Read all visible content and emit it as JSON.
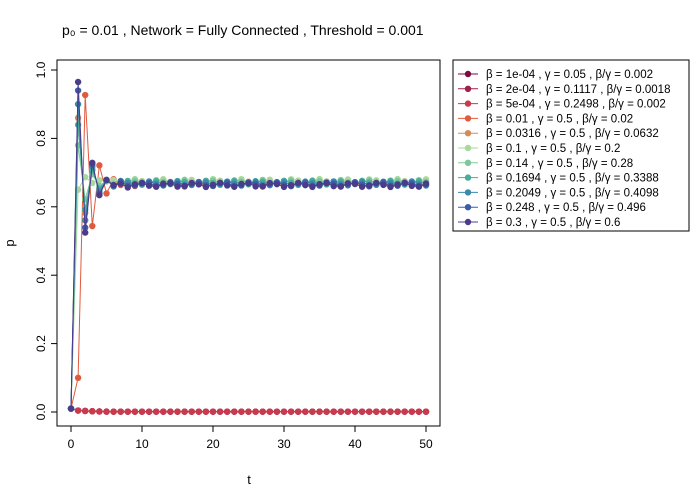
{
  "chart_data": {
    "type": "line",
    "title": "p₀ = 0.01 ,  Network = Fully Connected ,  Threshold = 0.001",
    "xlabel": "t",
    "ylabel": "p",
    "xlim": [
      0,
      50
    ],
    "ylim": [
      0,
      1
    ],
    "x_ticks": [
      "0",
      "10",
      "20",
      "30",
      "40",
      "50"
    ],
    "y_ticks": [
      "0.0",
      "0.2",
      "0.4",
      "0.6",
      "0.8",
      "1.0"
    ],
    "legend_position": "top-right, outside plot",
    "series": [
      {
        "name": "β = 1e-04 ,  γ = 0.05 ,  β/γ = 0.002",
        "color": "#7b0a3e",
        "style": "decay",
        "peak": 0.01,
        "steady": 0.0
      },
      {
        "name": "β = 2e-04 ,  γ = 0.1117 ,  β/γ = 0.0018",
        "color": "#a0204c",
        "style": "decay",
        "peak": 0.01,
        "steady": 0.0
      },
      {
        "name": "β = 5e-04 ,  γ = 0.2498 ,  β/γ = 0.002",
        "color": "#c83a4c",
        "style": "decay",
        "peak": 0.01,
        "steady": 0.0
      },
      {
        "name": "β = 0.01 ,  γ = 0.5 ,  β/γ = 0.02",
        "color": "#e05a3e",
        "style": "osc",
        "peak": 0.1,
        "steady": 0.665
      },
      {
        "name": "β = 0.0316 ,  γ = 0.5 ,  β/γ = 0.0632",
        "color": "#d48a5a",
        "style": "osc",
        "peak": 0.86,
        "steady": 0.67
      },
      {
        "name": "β = 0.1 ,  γ = 0.5 ,  β/γ = 0.2",
        "color": "#a8d89a",
        "style": "osc",
        "peak": 0.65,
        "steady": 0.675
      },
      {
        "name": "β = 0.14 ,  γ = 0.5 ,  β/γ = 0.28",
        "color": "#7cc89a",
        "style": "osc",
        "peak": 0.78,
        "steady": 0.672
      },
      {
        "name": "β = 0.1694 ,  γ = 0.5 ,  β/γ = 0.3388",
        "color": "#4aab9a",
        "style": "osc",
        "peak": 0.84,
        "steady": 0.67
      },
      {
        "name": "β = 0.2049 ,  γ = 0.5 ,  β/γ = 0.4098",
        "color": "#3a8aaa",
        "style": "osc",
        "peak": 0.9,
        "steady": 0.668
      },
      {
        "name": "β = 0.248 ,  γ = 0.5 ,  β/γ = 0.496",
        "color": "#3a5ea8",
        "style": "osc",
        "peak": 0.94,
        "steady": 0.666
      },
      {
        "name": "β = 0.3 ,  γ = 0.5 ,  β/γ = 0.6",
        "color": "#4a3c8a",
        "style": "osc",
        "peak": 0.965,
        "steady": 0.664
      }
    ]
  }
}
